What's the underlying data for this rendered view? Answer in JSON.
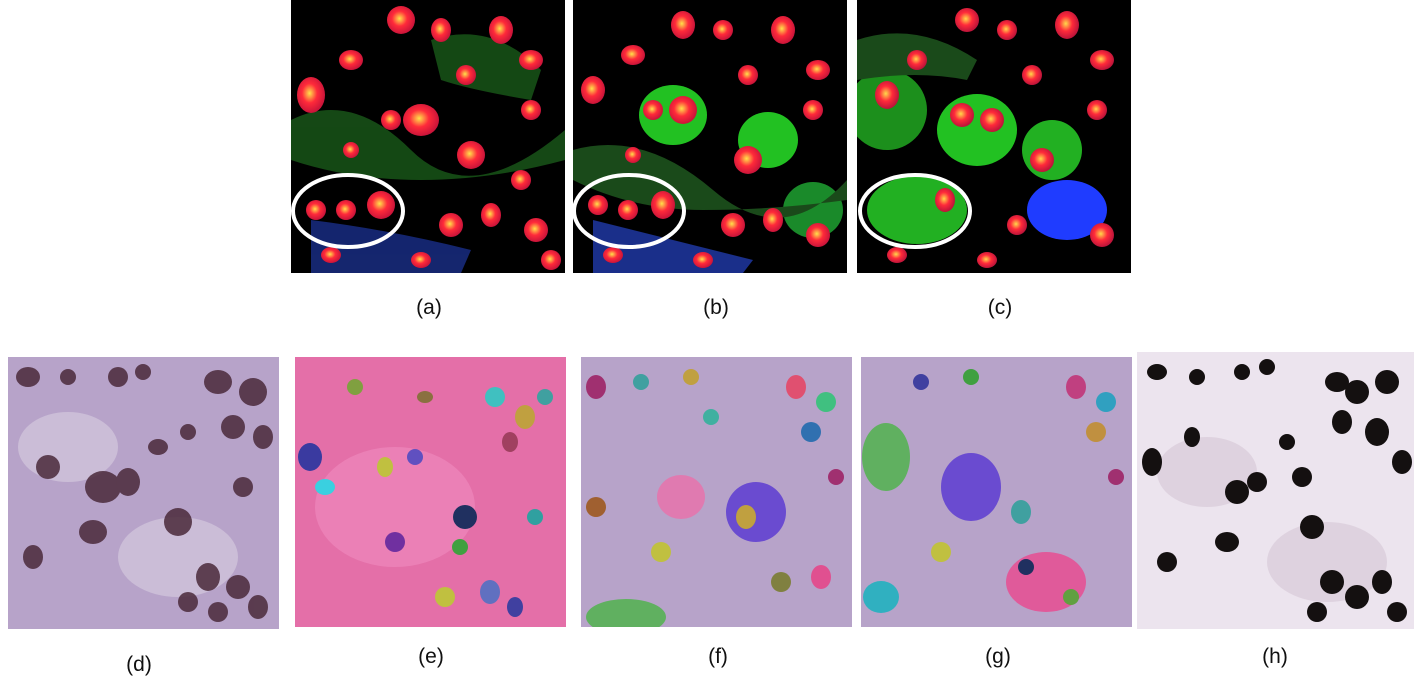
{
  "figure": {
    "captions": {
      "a": "(a)",
      "b": "(b)",
      "c": "(c)",
      "d": "(d)",
      "e": "(e)",
      "f": "(f)",
      "g": "(g)",
      "h": "(h)"
    },
    "panels": [
      {
        "id": "a",
        "kind": "feature-map",
        "highlight": "ellipse"
      },
      {
        "id": "b",
        "kind": "feature-map",
        "highlight": "ellipse"
      },
      {
        "id": "c",
        "kind": "feature-map",
        "highlight": "ellipse"
      },
      {
        "id": "d",
        "kind": "histology-patch"
      },
      {
        "id": "e",
        "kind": "instance-overlay"
      },
      {
        "id": "f",
        "kind": "instance-overlay"
      },
      {
        "id": "g",
        "kind": "instance-overlay"
      },
      {
        "id": "h",
        "kind": "nuclei-mask"
      }
    ],
    "colors": {
      "feature_background": "#000000",
      "feature_red": "#ff1a2e",
      "feature_green": "#22c122",
      "feature_blue": "#1f3cff",
      "tissue_lilac": "#b7a3c9",
      "tissue_pink": "#e46fa8",
      "nucleus_dark": "#4a2a3a",
      "mask_black": "#141010",
      "highlight_ring": "#ffffff"
    }
  }
}
